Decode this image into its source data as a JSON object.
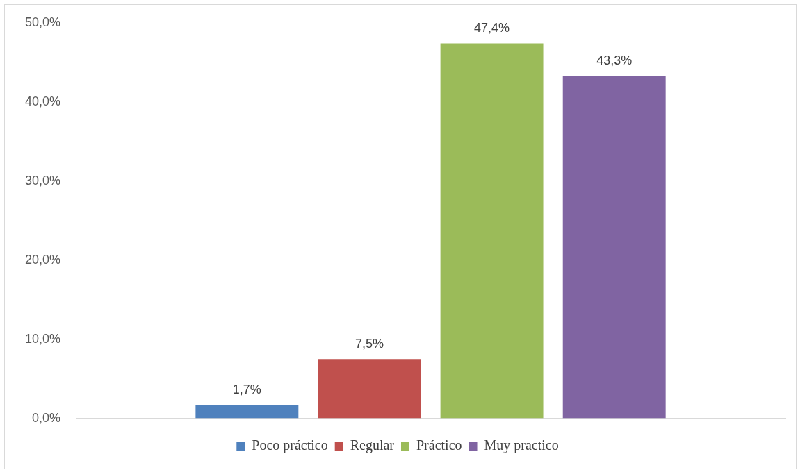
{
  "chart_data": {
    "type": "bar",
    "categories": [
      null
    ],
    "series": [
      {
        "name": "Poco práctico",
        "color": "#4f81bd",
        "values": [
          1.7
        ],
        "value_labels": [
          "1,7%"
        ]
      },
      {
        "name": "Regular",
        "color": "#c0504d",
        "values": [
          7.5
        ],
        "value_labels": [
          "7,5%"
        ]
      },
      {
        "name": "Práctico",
        "color": "#9bbb59",
        "values": [
          47.4
        ],
        "value_labels": [
          "47,4%"
        ]
      },
      {
        "name": "Muy practico",
        "color": "#8064a2",
        "values": [
          43.3
        ],
        "value_labels": [
          "43,3%"
        ]
      }
    ],
    "ylim": [
      0,
      50
    ],
    "yticks": [
      {
        "value": 0,
        "label": "0,0%"
      },
      {
        "value": 10,
        "label": "10,0%"
      },
      {
        "value": 20,
        "label": "20,0%"
      },
      {
        "value": 30,
        "label": "30,0%"
      },
      {
        "value": 40,
        "label": "40,0%"
      },
      {
        "value": 50,
        "label": "50,0%"
      }
    ],
    "grid": false,
    "legend": "bottom"
  }
}
